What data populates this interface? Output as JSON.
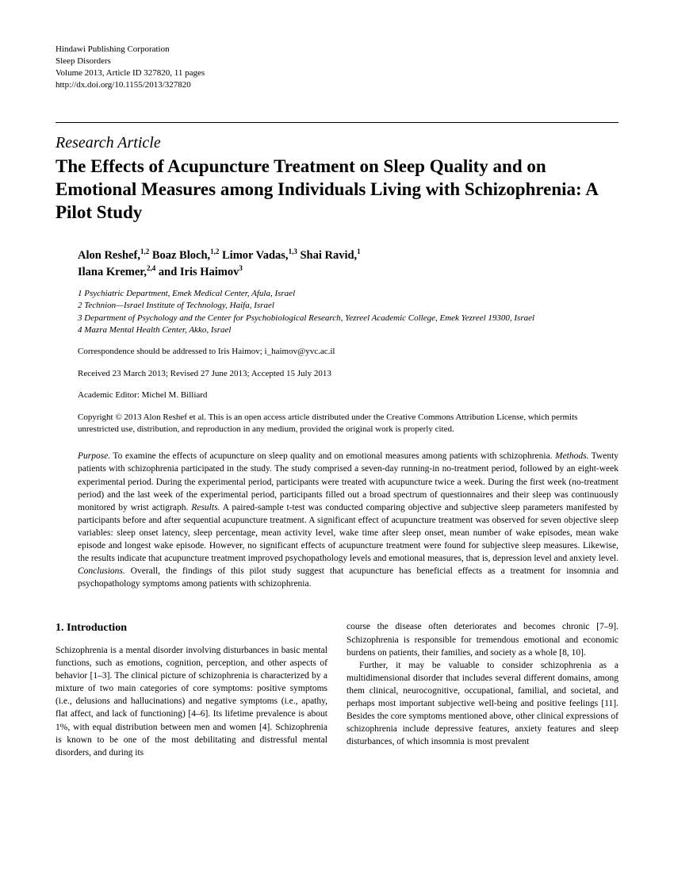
{
  "meta": {
    "publisher": "Hindawi Publishing Corporation",
    "journal": "Sleep Disorders",
    "volume_line": "Volume 2013, Article ID 327820, 11 pages",
    "doi": "http://dx.doi.org/10.1155/2013/327820"
  },
  "article_type": "Research Article",
  "title": "The Effects of Acupuncture Treatment on Sleep Quality and on Emotional Measures among Individuals Living with Schizophrenia: A Pilot Study",
  "authors_line1": "Alon Reshef,",
  "authors_sup1": "1,2",
  "authors_line2": " Boaz Bloch,",
  "authors_sup2": "1,2",
  "authors_line3": " Limor Vadas,",
  "authors_sup3": "1,3",
  "authors_line4": " Shai Ravid,",
  "authors_sup4": "1",
  "authors_line5": "Ilana Kremer,",
  "authors_sup5": "2,4",
  "authors_line6": " and Iris Haimov",
  "authors_sup6": "3",
  "affiliations": {
    "a1": "1 Psychiatric Department, Emek Medical Center, Afula, Israel",
    "a2": "2 Technion—Israel Institute of Technology, Haifa, Israel",
    "a3": "3 Department of Psychology and the Center for Psychobiological Research, Yezreel Academic College, Emek Yezreel 19300, Israel",
    "a4": "4 Mazra Mental Health Center, Akko, Israel"
  },
  "correspondence": "Correspondence should be addressed to Iris Haimov; i_haimov@yvc.ac.il",
  "dates": "Received 23 March 2013; Revised 27 June 2013; Accepted 15 July 2013",
  "editor": "Academic Editor: Michel M. Billiard",
  "copyright": "Copyright © 2013 Alon Reshef et al. This is an open access article distributed under the Creative Commons Attribution License, which permits unrestricted use, distribution, and reproduction in any medium, provided the original work is properly cited.",
  "abstract": {
    "purpose_label": "Purpose.",
    "purpose": " To examine the effects of acupuncture on sleep quality and on emotional measures among patients with schizophrenia. ",
    "methods_label": "Methods.",
    "methods": " Twenty patients with schizophrenia participated in the study. The study comprised a seven-day running-in no-treatment period, followed by an eight-week experimental period. During the experimental period, participants were treated with acupuncture twice a week. During the first week (no-treatment period) and the last week of the experimental period, participants filled out a broad spectrum of questionnaires and their sleep was continuously monitored by wrist actigraph. ",
    "results_label": "Results.",
    "results": " A paired-sample t-test was conducted comparing objective and subjective sleep parameters manifested by participants before and after sequential acupuncture treatment. A significant effect of acupuncture treatment was observed for seven objective sleep variables: sleep onset latency, sleep percentage, mean activity level, wake time after sleep onset, mean number of wake episodes, mean wake episode and longest wake episode. However, no significant effects of acupuncture treatment were found for subjective sleep measures. Likewise, the results indicate that acupuncture treatment improved psychopathology levels and emotional measures, that is, depression level and anxiety level. ",
    "conclusions_label": "Conclusions.",
    "conclusions": " Overall, the findings of this pilot study suggest that acupuncture has beneficial effects as a treatment for insomnia and psychopathology symptoms among patients with schizophrenia."
  },
  "intro_heading": "1. Introduction",
  "col1_p1": "Schizophrenia is a mental disorder involving disturbances in basic mental functions, such as emotions, cognition, perception, and other aspects of behavior [1–3]. The clinical picture of schizophrenia is characterized by a mixture of two main categories of core symptoms: positive symptoms (i.e., delusions and hallucinations) and negative symptoms (i.e., apathy, flat affect, and lack of functioning) [4–6]. Its lifetime prevalence is about 1%, with equal distribution between men and women [4]. Schizophrenia is known to be one of the most debilitating and distressful mental disorders, and during its",
  "col2_p1": "course the disease often deteriorates and becomes chronic [7–9]. Schizophrenia is responsible for tremendous emotional and economic burdens on patients, their families, and society as a whole [8, 10].",
  "col2_p2": "Further, it may be valuable to consider schizophrenia as a multidimensional disorder that includes several different domains, among them clinical, neurocognitive, occupational, familial, and societal, and perhaps most important subjective well-being and positive feelings [11]. Besides the core symptoms mentioned above, other clinical expressions of schizophrenia include depressive features, anxiety features and sleep disturbances, of which insomnia is most prevalent"
}
